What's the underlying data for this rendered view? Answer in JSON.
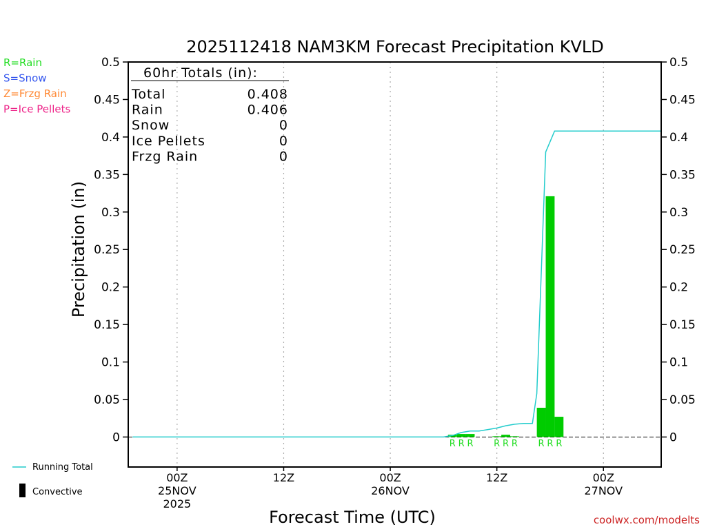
{
  "chart_data": {
    "type": "bar",
    "title": "2025112418 NAM3KM Forecast Precipitation KVLD",
    "xlabel": "Forecast Time (UTC)",
    "ylabel": "Precipitation (in)",
    "ylim": [
      -0.04,
      0.5
    ],
    "yticks": [
      "0",
      "0.05",
      "0.1",
      "0.15",
      "0.2",
      "0.25",
      "0.3",
      "0.35",
      "0.4",
      "0.45",
      "0.5"
    ],
    "xlim_hours": [
      -5.5,
      54.5
    ],
    "xticks": [
      {
        "hour": 0,
        "lines": [
          "00Z",
          "25NOV",
          "2025"
        ]
      },
      {
        "hour": 12,
        "lines": [
          "12Z"
        ]
      },
      {
        "hour": 24,
        "lines": [
          "00Z",
          "26NOV"
        ]
      },
      {
        "hour": 36,
        "lines": [
          "12Z"
        ]
      },
      {
        "hour": 48,
        "lines": [
          "00Z",
          "27NOV"
        ]
      }
    ],
    "precip_type_legend": [
      {
        "label": "R=Rain",
        "color": "#22dd22"
      },
      {
        "label": "S=Snow",
        "color": "#3355ee"
      },
      {
        "label": "Z=Frzg Rain",
        "color": "#ff8833"
      },
      {
        "label": "P=Ice Pellets",
        "color": "#ee2288"
      }
    ],
    "totals": {
      "heading": "60hr Totals (in):",
      "rows": [
        {
          "label": "Total",
          "value": "0.408"
        },
        {
          "label": "Rain",
          "value": "0.406"
        },
        {
          "label": "Snow",
          "value": "0"
        },
        {
          "label": "Ice Pellets",
          "value": "0"
        },
        {
          "label": "Frzg Rain",
          "value": "0"
        }
      ]
    },
    "series": [
      {
        "name": "Convective",
        "kind": "bars",
        "bars": [
          {
            "hour": 31,
            "value": 0.003,
            "type": "R"
          },
          {
            "hour": 32,
            "value": 0.004,
            "type": "R"
          },
          {
            "hour": 33,
            "value": 0.004,
            "type": "R"
          },
          {
            "hour": 36,
            "value": 0.001,
            "type": "R"
          },
          {
            "hour": 37,
            "value": 0.003,
            "type": "R"
          },
          {
            "hour": 38,
            "value": 0.001,
            "type": "R"
          },
          {
            "hour": 41,
            "value": 0.039,
            "type": "R"
          },
          {
            "hour": 42,
            "value": 0.321,
            "type": "R"
          },
          {
            "hour": 43,
            "value": 0.027,
            "type": "R"
          }
        ]
      },
      {
        "name": "Running Total",
        "kind": "line",
        "points": [
          [
            -5,
            0
          ],
          [
            30,
            0
          ],
          [
            31,
            0.002
          ],
          [
            32,
            0.006
          ],
          [
            33,
            0.008
          ],
          [
            34,
            0.008
          ],
          [
            35,
            0.01
          ],
          [
            36,
            0.012
          ],
          [
            37,
            0.015
          ],
          [
            38,
            0.017
          ],
          [
            39,
            0.018
          ],
          [
            40,
            0.018
          ],
          [
            40.5,
            0.058
          ],
          [
            41.5,
            0.38
          ],
          [
            42.5,
            0.408
          ],
          [
            54.5,
            0.408
          ]
        ]
      }
    ],
    "type_labels": [
      {
        "hour": 31,
        "text": "R"
      },
      {
        "hour": 32,
        "text": "R"
      },
      {
        "hour": 33,
        "text": "R"
      },
      {
        "hour": 36,
        "text": "R"
      },
      {
        "hour": 37,
        "text": "R"
      },
      {
        "hour": 38,
        "text": "R"
      },
      {
        "hour": 41,
        "text": "R"
      },
      {
        "hour": 42,
        "text": "R"
      },
      {
        "hour": 43,
        "text": "R"
      }
    ],
    "bar_color": "#00cc00",
    "line_color": "#22cccc",
    "grid": "vertical-dotted",
    "legend": "bottom-left"
  },
  "legend_items": {
    "running_total": "Running Total",
    "convective": "Convective"
  },
  "credit": "coolwx.com/modelts"
}
